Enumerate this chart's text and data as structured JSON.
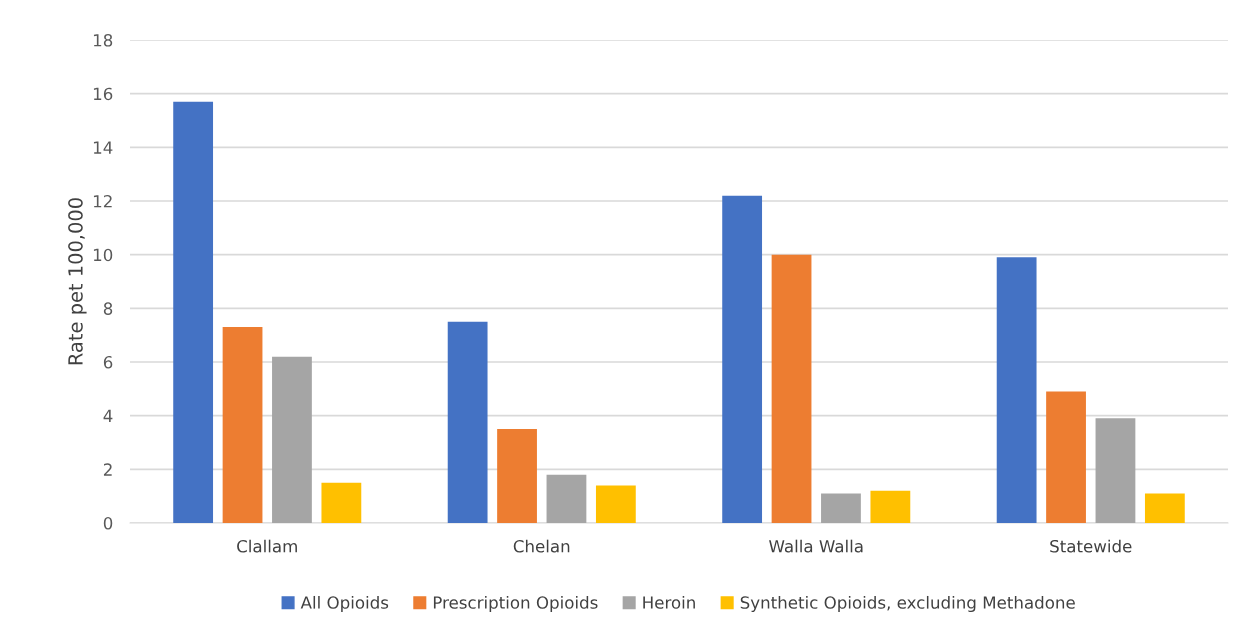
{
  "chart_data": {
    "type": "bar",
    "ylabel": "Rate pet 100,000",
    "categories": [
      "Clallam",
      "Chelan",
      "Walla Walla",
      "Statewide"
    ],
    "series": [
      {
        "name": "All Opioids",
        "color": "#4472c4",
        "values": [
          15.7,
          7.5,
          12.2,
          9.9
        ]
      },
      {
        "name": "Prescription Opioids",
        "color": "#ed7d31",
        "values": [
          7.3,
          3.5,
          10.0,
          4.9
        ]
      },
      {
        "name": "Heroin",
        "color": "#a5a5a5",
        "values": [
          6.2,
          1.8,
          1.1,
          3.9
        ]
      },
      {
        "name": "Synthetic Opioids, excluding Methadone",
        "color": "#ffc000",
        "values": [
          1.5,
          1.4,
          1.2,
          1.1
        ]
      }
    ],
    "ylim": [
      0,
      18
    ],
    "yticks": [
      0,
      2,
      4,
      6,
      8,
      10,
      12,
      14,
      16,
      18
    ],
    "grid": "y",
    "legend": "bottom"
  }
}
